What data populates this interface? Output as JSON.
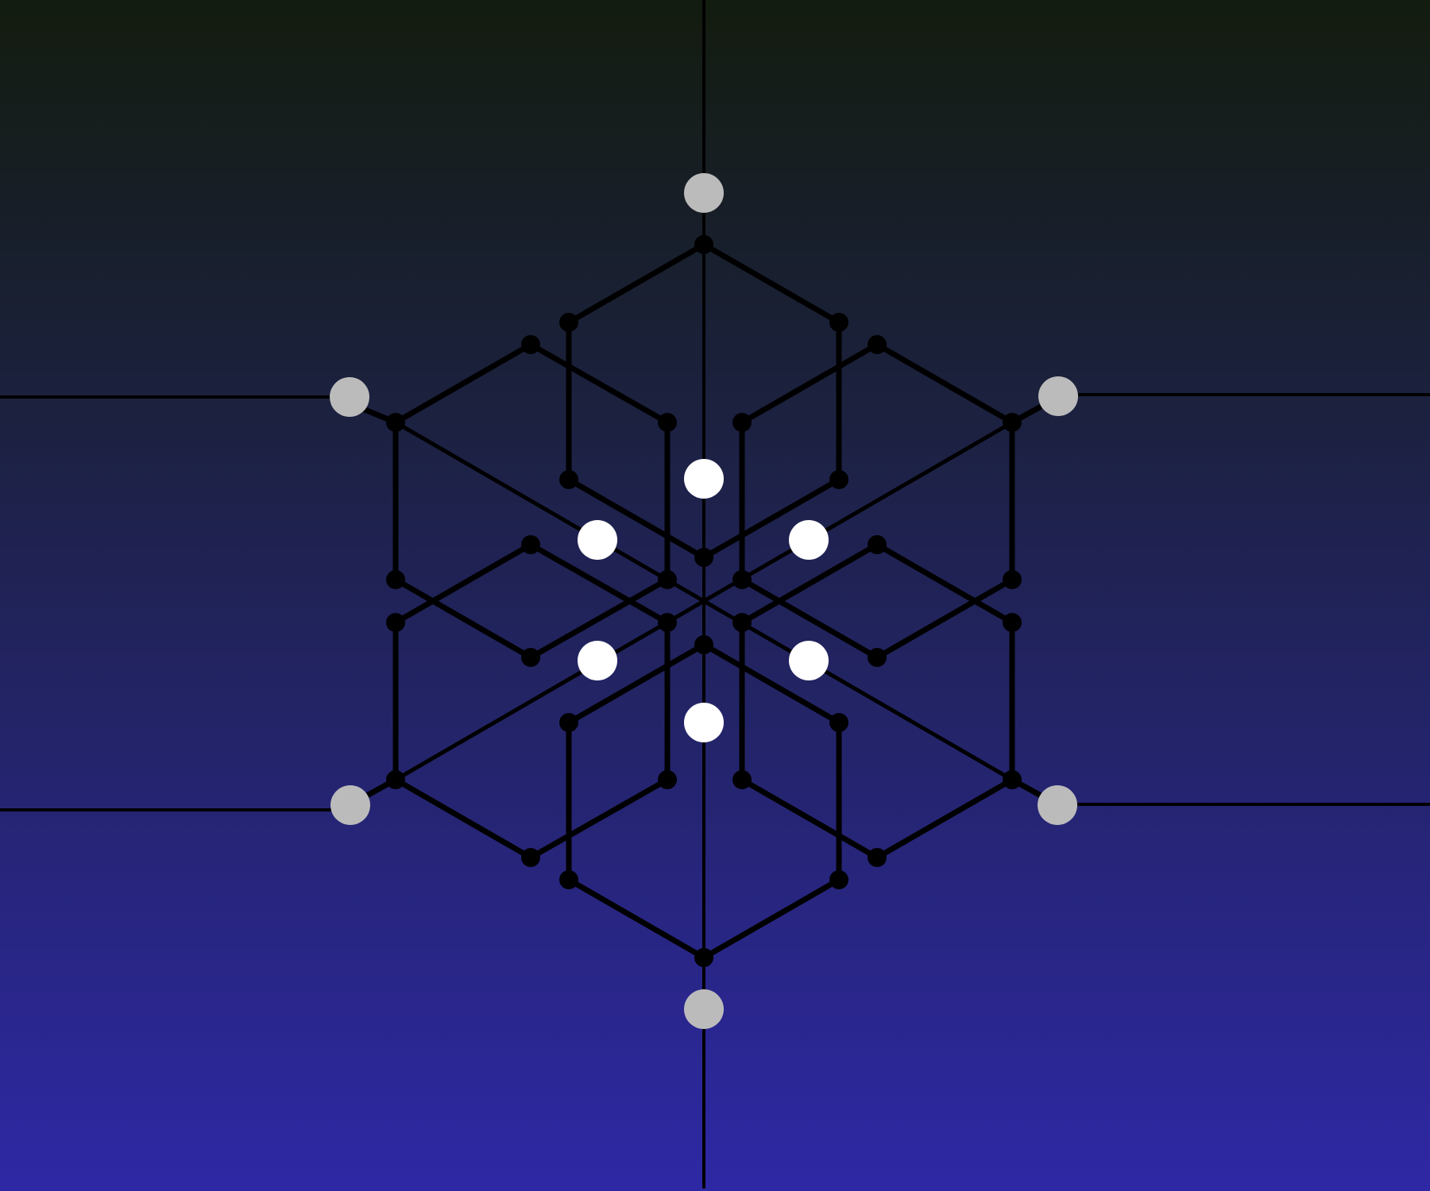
{
  "colors": {
    "background_top": "#131c0f",
    "background_mid": "#1c2140",
    "background_bottom": "#2e28a5",
    "lines": "#000000",
    "anchor_nodes": "#bbbbbb",
    "center_nodes": "#ffffff"
  },
  "puzzle": {
    "hexagonal_symmetry": 6,
    "outer_anchor_count": 6,
    "inner_marker_count": 6
  }
}
